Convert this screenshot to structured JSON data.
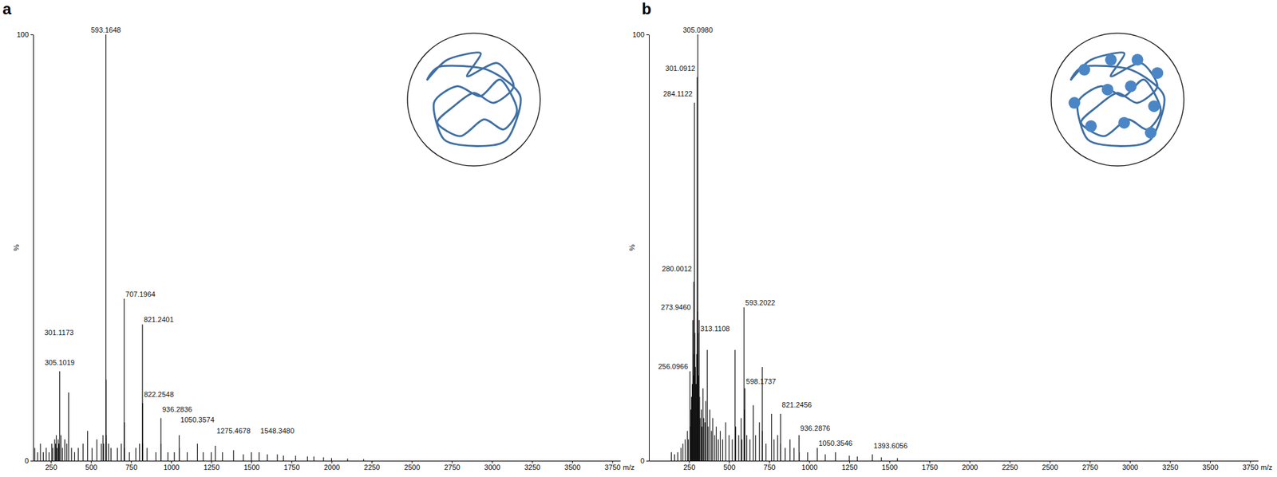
{
  "chart_data": [
    {
      "type": "stem",
      "title": "a",
      "x_label": "m/z",
      "y_label": "%",
      "color": "#111111",
      "grid": false,
      "xlim": [
        140,
        3800
      ],
      "ylim": [
        0,
        100
      ],
      "xticks": [
        250,
        500,
        750,
        1000,
        1250,
        1500,
        1750,
        2000,
        2250,
        2500,
        2750,
        3000,
        3250,
        3500,
        3750
      ],
      "yticks": [
        0,
        100
      ],
      "x": [
        150,
        168,
        185,
        203,
        221,
        239,
        256,
        262,
        274,
        280,
        284,
        290,
        296,
        301.1173,
        305.1019,
        313,
        323,
        337,
        350,
        361,
        379,
        398,
        421,
        451,
        479,
        507,
        537,
        565,
        575,
        579,
        593.1648,
        594.17,
        595,
        610,
        625,
        665,
        689,
        707.1964,
        708.2,
        709,
        740,
        780,
        803,
        821.2401,
        822.2548,
        823,
        850,
        905,
        936.2836,
        937.29,
        980,
        1020,
        1050.3574,
        1051.36,
        1100,
        1164,
        1200,
        1250,
        1275.4678,
        1320,
        1389,
        1450,
        1500,
        1548.348,
        1600,
        1662,
        1700,
        1776,
        1850,
        1890,
        1950,
        2000,
        2100,
        2200
      ],
      "values": [
        3,
        2,
        4,
        2,
        3,
        2,
        4,
        3,
        5,
        4,
        6,
        3,
        5,
        4,
        21,
        6,
        3,
        5,
        4,
        16,
        3,
        2,
        3,
        4,
        7,
        3,
        5,
        4,
        6,
        4,
        100,
        19,
        6,
        4,
        3,
        3,
        4,
        38,
        9,
        3,
        2,
        3,
        4,
        32,
        13.5,
        4,
        3,
        2,
        10,
        4,
        2,
        2,
        6,
        3,
        2,
        4,
        2,
        2,
        3.5,
        2,
        2.5,
        1.5,
        2,
        2,
        1.5,
        1.5,
        1.2,
        1.2,
        1,
        1,
        0.8,
        0.6,
        0.5,
        0.4
      ],
      "annotations": [
        {
          "x": 593.1648,
          "y": 100,
          "text": "593.1648"
        },
        {
          "x": 707.1964,
          "y": 38,
          "text": "707.1964"
        },
        {
          "x": 821.2401,
          "y": 32,
          "text": "821.2401"
        },
        {
          "x": 822.2548,
          "y": 14.5,
          "text": "822.2548"
        },
        {
          "x": 936.2836,
          "y": 11,
          "text": "936.2836"
        },
        {
          "x": 305.1019,
          "y": 22,
          "text": "305.1019"
        },
        {
          "x": 301.1173,
          "y": 29,
          "text": "301.1173"
        },
        {
          "x": 1050.3574,
          "y": 8.5,
          "text": "1050.3574"
        },
        {
          "x": 1275.4678,
          "y": 6,
          "text": "1275.4678"
        },
        {
          "x": 1548.348,
          "y": 6,
          "text": "1548.3480"
        }
      ]
    },
    {
      "type": "stem",
      "title": "b",
      "x_label": "m/z",
      "y_label": "%",
      "color": "#111111",
      "grid": false,
      "xlim": [
        0,
        3800
      ],
      "ylim": [
        0,
        100
      ],
      "xticks": [
        250,
        500,
        750,
        1000,
        1250,
        1500,
        1750,
        2000,
        2250,
        2500,
        2750,
        3000,
        3250,
        3500,
        3750
      ],
      "yticks": [
        0,
        100
      ],
      "x": [
        140,
        160,
        180,
        200,
        212,
        226,
        240,
        246,
        256.0966,
        259,
        262,
        266,
        270,
        273.946,
        277,
        280.0012,
        282,
        284.1122,
        287,
        290,
        295,
        298,
        301.0912,
        303,
        305.098,
        307,
        310,
        313.1108,
        316,
        320,
        327,
        331,
        337,
        342,
        350,
        355,
        364,
        370,
        380,
        390,
        398,
        410,
        420,
        433,
        445,
        460,
        479,
        500,
        520,
        537,
        541,
        560,
        575,
        580,
        593.2022,
        595,
        598.1737,
        610,
        630,
        651,
        665,
        689,
        707,
        708,
        730,
        765,
        780,
        803,
        821.2456,
        822,
        850,
        880,
        905,
        936.2876,
        937,
        990,
        1050.3546,
        1100,
        1164,
        1250,
        1300,
        1393.6056,
        1450,
        1550
      ],
      "values": [
        2,
        1.5,
        2,
        3,
        4,
        5,
        7,
        5,
        21,
        8,
        12,
        15,
        18,
        33,
        20,
        42,
        25,
        84,
        30,
        22,
        18,
        25,
        90,
        35,
        100,
        30,
        20,
        33,
        15,
        10,
        12,
        8,
        17,
        10,
        9,
        14,
        26,
        8,
        12,
        7,
        10,
        6,
        8,
        5,
        7,
        5,
        9,
        6,
        5,
        26,
        8,
        6,
        10,
        5,
        36,
        12,
        17,
        6,
        5,
        13,
        6,
        9,
        22,
        7,
        4,
        11,
        5,
        6,
        11,
        4,
        3,
        5,
        3,
        6,
        2,
        2,
        3,
        1.5,
        2,
        1.2,
        1,
        1.5,
        0.8,
        0.6
      ],
      "annotations": [
        {
          "x": 305.098,
          "y": 100,
          "text": "305.0980"
        },
        {
          "x": 301.0912,
          "y": 91,
          "text": "301.0912"
        },
        {
          "x": 284.1122,
          "y": 85,
          "text": "284.1122"
        },
        {
          "x": 280.0012,
          "y": 44,
          "text": "280.0012"
        },
        {
          "x": 273.946,
          "y": 35,
          "text": "273.9460"
        },
        {
          "x": 313.1108,
          "y": 30,
          "text": "313.1108"
        },
        {
          "x": 256.0966,
          "y": 21,
          "text": "256.0966"
        },
        {
          "x": 593.2022,
          "y": 36,
          "text": "593.2022"
        },
        {
          "x": 598.1737,
          "y": 17.5,
          "text": "598.1737"
        },
        {
          "x": 821.2456,
          "y": 12,
          "text": "821.2456"
        },
        {
          "x": 936.2876,
          "y": 6.5,
          "text": "936.2876"
        },
        {
          "x": 1050.3546,
          "y": 3,
          "text": "1050.3546"
        },
        {
          "x": 1393.6056,
          "y": 2.5,
          "text": "1393.6056"
        }
      ]
    }
  ]
}
